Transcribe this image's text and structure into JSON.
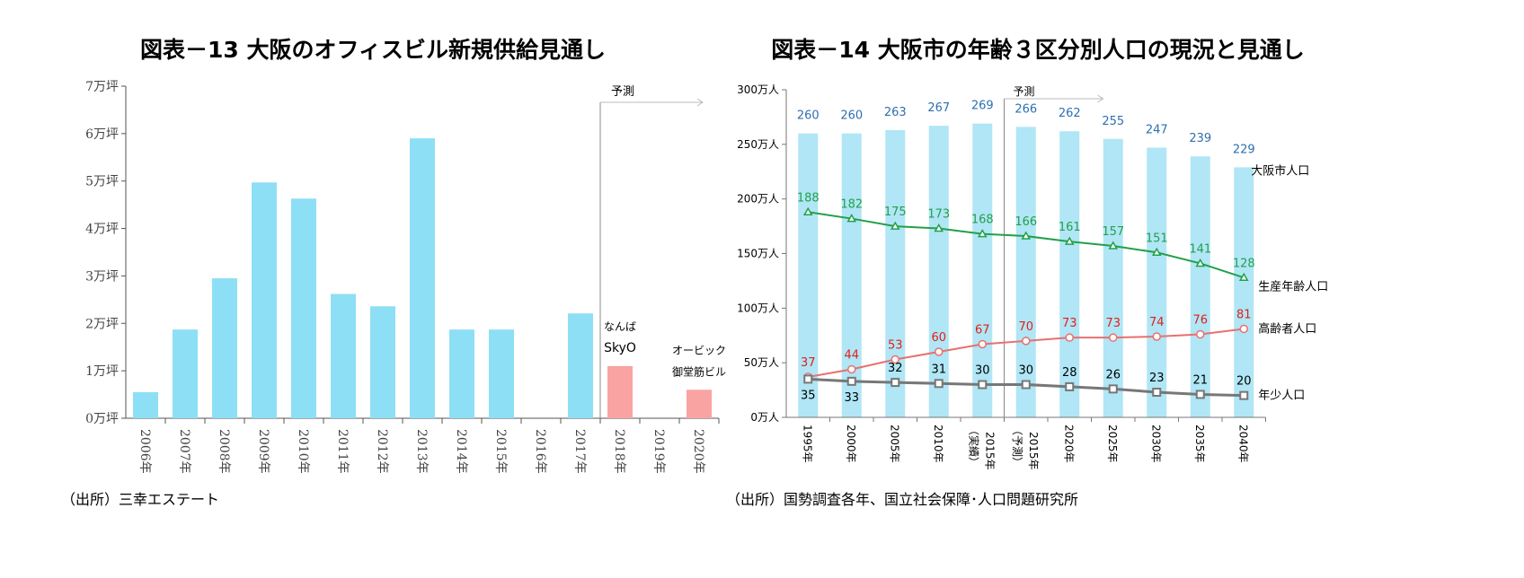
{
  "chart_data": [
    {
      "type": "bar",
      "title": "図表－13  大阪のオフィスビル新規供給見通し",
      "source": "（出所）三幸エステート",
      "ylim": [
        0,
        7
      ],
      "yticks": [
        "0万坪",
        "1万坪",
        "2万坪",
        "3万坪",
        "4万坪",
        "5万坪",
        "6万坪",
        "7万坪"
      ],
      "categories": [
        "2006年",
        "2007年",
        "2008年",
        "2009年",
        "2010年",
        "2011年",
        "2012年",
        "2013年",
        "2014年",
        "2015年",
        "2016年",
        "2017年",
        "2018年",
        "2019年",
        "2020年"
      ],
      "values": [
        0.55,
        1.87,
        2.95,
        4.97,
        4.63,
        2.62,
        2.36,
        5.9,
        1.87,
        1.87,
        0,
        2.21,
        1.1,
        0,
        0.6
      ],
      "forecast_from_index": 12,
      "forecast_label": "予測",
      "annotations": [
        {
          "category": "2018年",
          "lines": [
            "なんば",
            "SkyO"
          ]
        },
        {
          "category": "2020年",
          "lines": [
            "オービック",
            "御堂筋ビル"
          ]
        }
      ],
      "colors": {
        "actual": "#8ddff5",
        "forecast": "#f9a3a3"
      }
    },
    {
      "type": "bar+line",
      "title": "図表－14  大阪市の年齢３区分別人口の現況と見通し",
      "source": "（出所）国勢調査各年、国立社会保障･人口問題研究所",
      "ylim": [
        0,
        300
      ],
      "yticks": [
        "0万人",
        "50万人",
        "100万人",
        "150万人",
        "200万人",
        "250万人",
        "300万人"
      ],
      "categories": [
        [
          "1995年"
        ],
        [
          "2000年"
        ],
        [
          "2005年"
        ],
        [
          "2010年"
        ],
        [
          "2015年",
          "（実績）"
        ],
        [
          "2015年",
          "（予測）"
        ],
        [
          "2020年"
        ],
        [
          "2025年"
        ],
        [
          "2030年"
        ],
        [
          "2035年"
        ],
        [
          "2040年"
        ]
      ],
      "forecast_label": "予測",
      "series": [
        {
          "name": "大阪市人口",
          "kind": "bar",
          "color": "#b0e6f5",
          "labelColor": "#2e6fb0",
          "values": [
            260,
            260,
            263,
            267,
            269,
            266,
            262,
            255,
            247,
            239,
            229
          ]
        },
        {
          "name": "生産年齢人口",
          "kind": "line",
          "color": "#22a04a",
          "marker": "triangle",
          "values": [
            188,
            182,
            175,
            173,
            168,
            166,
            161,
            157,
            151,
            141,
            128
          ]
        },
        {
          "name": "高齢者人口",
          "kind": "line",
          "color": "#e8706f",
          "labelColor": "#e0201c",
          "marker": "circle",
          "values": [
            37,
            44,
            53,
            60,
            67,
            70,
            73,
            73,
            74,
            76,
            81
          ]
        },
        {
          "name": "年少人口",
          "kind": "line",
          "color": "#777777",
          "labelColor": "#000000",
          "marker": "square",
          "values": [
            35,
            33,
            32,
            31,
            30,
            30,
            28,
            26,
            23,
            21,
            20
          ]
        }
      ]
    }
  ]
}
